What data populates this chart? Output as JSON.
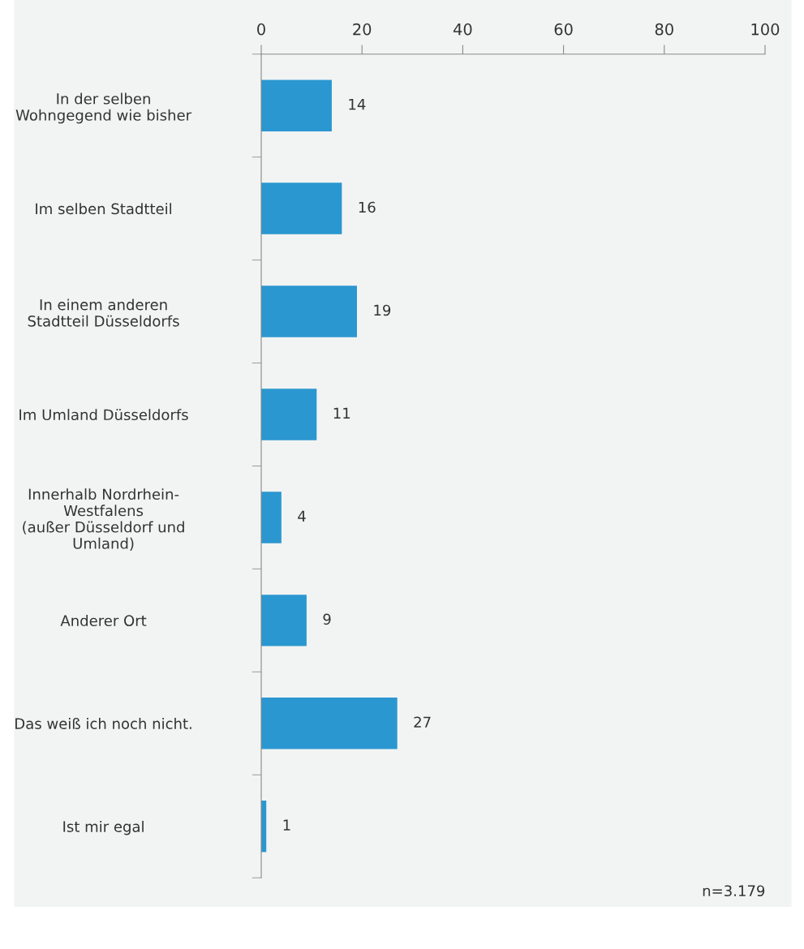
{
  "chart_data": {
    "type": "bar",
    "orientation": "horizontal",
    "categories": [
      "In der selben\nWohngegend wie bisher",
      "Im selben Stadtteil",
      "In einem anderen\nStadtteil Düsseldorfs",
      "Im Umland Düsseldorfs",
      "Innerhalb Nordrhein-\nWestfalens\n(außer Düsseldorf und\nUmland)",
      "Anderer Ort",
      "Das weiß ich noch nicht.",
      "Ist mir egal"
    ],
    "values": [
      14,
      16,
      19,
      11,
      4,
      9,
      27,
      1
    ],
    "color": "#2b97d0",
    "xlim": [
      0,
      100
    ],
    "xticks": [
      0,
      20,
      40,
      60,
      80,
      100
    ],
    "data_labels": true,
    "grid": false,
    "legend": false,
    "annotations": [
      "n=3.179"
    ]
  }
}
